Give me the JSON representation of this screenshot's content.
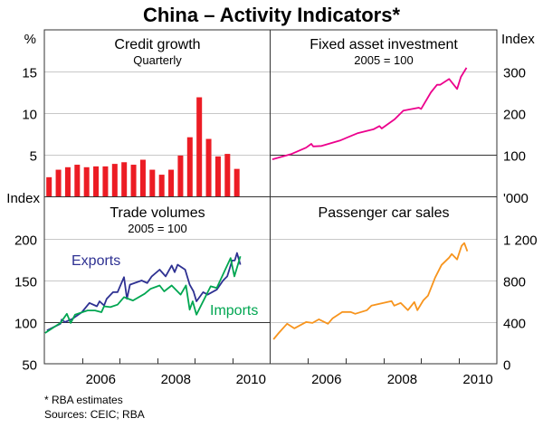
{
  "title": "China – Activity Indicators*",
  "footnotes": [
    "*   RBA estimates",
    "Sources: CEIC; RBA"
  ],
  "colors": {
    "credit": "#ec1c24",
    "fai": "#ec008c",
    "cars": "#f7941d",
    "exports": "#2e3192",
    "imports": "#00a651",
    "grid": "#c8c8c8",
    "axis": "#333333"
  },
  "chart_data": [
    {
      "type": "bar",
      "panel": "top-left",
      "title": "Credit growth",
      "subtitle": "Quarterly",
      "unit_label": "%",
      "ylim": [
        0,
        20
      ],
      "yticks": [
        5,
        10,
        15
      ],
      "xlim": [
        2005,
        2011
      ],
      "grid": true,
      "x": [
        2005.125,
        2005.375,
        2005.625,
        2005.875,
        2006.125,
        2006.375,
        2006.625,
        2006.875,
        2007.125,
        2007.375,
        2007.625,
        2007.875,
        2008.125,
        2008.375,
        2008.625,
        2008.875,
        2009.125,
        2009.375,
        2009.625,
        2009.875,
        2010.125
      ],
      "values": [
        2.3,
        3.2,
        3.5,
        3.8,
        3.5,
        3.6,
        3.6,
        3.9,
        4.1,
        3.8,
        4.4,
        3.2,
        2.6,
        3.2,
        4.9,
        7.1,
        11.9,
        6.9,
        4.8,
        5.1,
        3.3
      ]
    },
    {
      "type": "line",
      "panel": "top-right",
      "title": "Fixed asset investment",
      "subtitle": "2005 = 100",
      "unit_label": "Index",
      "ylim": [
        0,
        400
      ],
      "yticks": [
        100,
        200,
        300
      ],
      "xlim": [
        2005,
        2011
      ],
      "grid": true,
      "series": [
        {
          "color_key": "fai",
          "x": [
            2005.07,
            2005.58,
            2005.96,
            2006.1,
            2006.15,
            2006.37,
            2006.85,
            2007.33,
            2007.74,
            2007.9,
            2007.96,
            2008.3,
            2008.53,
            2008.94,
            2009.0,
            2009.26,
            2009.42,
            2009.5,
            2009.74,
            2009.95,
            2010.05,
            2010.2
          ],
          "y": [
            89,
            102,
            117,
            126,
            120,
            121,
            134,
            152,
            161,
            169,
            163,
            185,
            206,
            213,
            210,
            250,
            268,
            268,
            282,
            258,
            287,
            309
          ]
        }
      ]
    },
    {
      "type": "line",
      "panel": "bottom-left",
      "title": "Trade volumes",
      "subtitle": "2005 = 100",
      "unit_label": "Index",
      "ylim": [
        50,
        250
      ],
      "yticks": [
        50,
        100,
        150,
        200
      ],
      "xlim": [
        2005,
        2011
      ],
      "xticklabels": [
        "2006",
        "2008",
        "2010"
      ],
      "grid": true,
      "series": [
        {
          "name": "Exports",
          "color_key": "exports",
          "x": [
            2005.07,
            2005.43,
            2005.46,
            2005.55,
            2005.75,
            2006.0,
            2006.2,
            2006.4,
            2006.47,
            2006.59,
            2006.66,
            2006.83,
            2006.95,
            2007.12,
            2007.2,
            2007.28,
            2007.59,
            2007.74,
            2007.86,
            2008.07,
            2008.23,
            2008.39,
            2008.47,
            2008.55,
            2008.75,
            2008.87,
            2008.97,
            2009.05,
            2009.23,
            2009.35,
            2009.59,
            2009.76,
            2009.87,
            2010.0,
            2010.07,
            2010.13,
            2010.22
          ],
          "y": [
            90,
            98,
            103,
            100,
            104,
            112,
            123,
            119,
            125,
            120,
            128,
            136,
            136,
            154,
            128,
            145,
            150,
            147,
            155,
            163,
            155,
            168,
            160,
            169,
            163,
            145,
            137,
            125,
            136,
            133,
            139,
            150,
            155,
            174,
            174,
            183,
            169
          ]
        },
        {
          "name": "Imports",
          "color_key": "imports",
          "x": [
            2005.02,
            2005.43,
            2005.6,
            2005.7,
            2005.82,
            2006.15,
            2006.35,
            2006.52,
            2006.59,
            2006.76,
            2006.95,
            2007.12,
            2007.36,
            2007.67,
            2007.83,
            2008.07,
            2008.19,
            2008.39,
            2008.63,
            2008.77,
            2008.87,
            2008.95,
            2009.05,
            2009.43,
            2009.59,
            2009.96,
            2010.06,
            2010.22
          ],
          "y": [
            87,
            99,
            110,
            99,
            109,
            114,
            114,
            112,
            119,
            118,
            121,
            130,
            126,
            134,
            140,
            144,
            137,
            144,
            133,
            144,
            115,
            125,
            109,
            143,
            141,
            177,
            155,
            179
          ]
        }
      ]
    },
    {
      "type": "line",
      "panel": "bottom-right",
      "title": "Passenger car sales",
      "unit_label": "'000",
      "ylim": [
        0,
        1600
      ],
      "yticks": [
        0,
        400,
        800,
        1200
      ],
      "yticklabels": [
        "0",
        "400",
        "800",
        "1 200"
      ],
      "xlim": [
        2005,
        2011
      ],
      "xticklabels": [
        "2006",
        "2008",
        "2010"
      ],
      "grid": true,
      "series": [
        {
          "color_key": "cars",
          "x": [
            2005.1,
            2005.24,
            2005.46,
            2005.65,
            2005.96,
            2006.13,
            2006.3,
            2006.54,
            2006.66,
            2006.92,
            2007.14,
            2007.26,
            2007.57,
            2007.69,
            2008.22,
            2008.29,
            2008.46,
            2008.65,
            2008.82,
            2008.9,
            2009.06,
            2009.18,
            2009.37,
            2009.54,
            2009.74,
            2009.81,
            2009.95,
            2010.07,
            2010.14,
            2010.22
          ],
          "y": [
            235,
            296,
            384,
            340,
            401,
            392,
            427,
            384,
            436,
            497,
            497,
            480,
            515,
            558,
            602,
            558,
            584,
            515,
            593,
            515,
            610,
            654,
            828,
            950,
            1020,
            1055,
            1003,
            1134,
            1160,
            1081
          ]
        }
      ]
    }
  ]
}
